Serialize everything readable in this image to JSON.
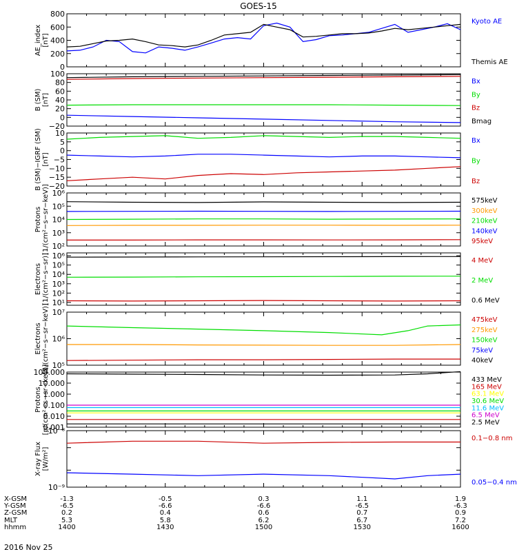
{
  "figure": {
    "title": "GOES-15",
    "footer_date": "2016 Nov 25",
    "x_axis": {
      "row_labels": [
        "X-GSM",
        "Y-GSM",
        "Z-GSM",
        "MLT",
        "hhmm"
      ],
      "columns": [
        [
          "-1.3",
          "-6.5",
          "0.2",
          "5.3",
          "1400"
        ],
        [
          "-0.5",
          "-6.6",
          "0.4",
          "5.8",
          "1430"
        ],
        [
          "0.3",
          "-6.6",
          "0.6",
          "6.2",
          "1500"
        ],
        [
          "1.1",
          "-6.5",
          "0.7",
          "6.7",
          "1530"
        ],
        [
          "1.9",
          "-6.3",
          "0.9",
          "7.2",
          "1600"
        ]
      ]
    }
  },
  "chart_data": [
    {
      "type": "line",
      "ylabel": [
        "AE_index",
        "[nT]"
      ],
      "yscale": "linear",
      "ylim": [
        0,
        800
      ],
      "yticks": [
        0,
        200,
        400,
        600,
        800
      ],
      "ytick_labels": [
        "0",
        "200",
        "400",
        "600",
        "800"
      ],
      "series": [
        {
          "name": "Kyoto AE",
          "color": "#0000ff",
          "t": [
            0,
            4,
            8,
            12,
            16,
            20,
            24,
            28,
            32,
            36,
            40,
            44,
            48,
            52,
            56,
            60,
            64,
            68,
            72,
            76,
            80,
            84,
            88,
            92,
            96,
            100,
            104,
            108,
            112,
            116,
            120
          ],
          "values": [
            240,
            250,
            300,
            400,
            380,
            230,
            210,
            300,
            280,
            250,
            300,
            360,
            420,
            440,
            420,
            620,
            660,
            600,
            380,
            410,
            470,
            480,
            500,
            520,
            580,
            640,
            520,
            560,
            600,
            650,
            560
          ]
        },
        {
          "name": "Themis AE",
          "color": "#000000",
          "t": [
            0,
            4,
            8,
            12,
            16,
            20,
            24,
            28,
            32,
            36,
            40,
            44,
            48,
            52,
            56,
            60,
            64,
            68,
            72,
            76,
            80,
            84,
            88,
            92,
            96,
            100,
            104,
            108,
            112,
            116,
            120
          ],
          "values": [
            300,
            310,
            350,
            390,
            400,
            420,
            380,
            330,
            320,
            300,
            330,
            400,
            480,
            500,
            520,
            640,
            600,
            560,
            450,
            460,
            480,
            500,
            500,
            510,
            540,
            580,
            560,
            580,
            600,
            620,
            640
          ]
        }
      ]
    },
    {
      "type": "line",
      "ylabel": [
        "B (SM)",
        "[nT]"
      ],
      "yscale": "linear",
      "ylim": [
        -20,
        100
      ],
      "yticks": [
        -20,
        0,
        20,
        40,
        60,
        80,
        100
      ],
      "ytick_labels": [
        "−20",
        "0",
        "20",
        "40",
        "60",
        "80",
        "100"
      ],
      "series": [
        {
          "name": "Bx",
          "color": "#0000ff",
          "t": [
            0,
            20,
            40,
            60,
            80,
            100,
            120
          ],
          "values": [
            5,
            2,
            -1,
            -4,
            -7,
            -10,
            -12
          ]
        },
        {
          "name": "By",
          "color": "#00dd00",
          "t": [
            0,
            20,
            40,
            60,
            80,
            100,
            120
          ],
          "values": [
            28,
            29,
            29,
            29,
            29,
            28,
            27
          ]
        },
        {
          "name": "Bz",
          "color": "#cc0000",
          "t": [
            0,
            20,
            40,
            60,
            80,
            100,
            120
          ],
          "values": [
            87,
            89,
            90,
            91,
            92,
            93,
            94
          ]
        },
        {
          "name": "Bmag",
          "color": "#000000",
          "t": [
            0,
            20,
            40,
            60,
            80,
            100,
            120
          ],
          "values": [
            91,
            93,
            94,
            95,
            96,
            97,
            98
          ]
        }
      ]
    },
    {
      "type": "line",
      "ylabel": [
        "B (SM)−IGRF (SM)",
        "[nT]"
      ],
      "yscale": "linear",
      "ylim": [
        -20,
        10
      ],
      "yticks": [
        -20,
        -15,
        -10,
        -5,
        0,
        5,
        10
      ],
      "ytick_labels": [
        "−20",
        "−15",
        "−10",
        "−5",
        "0",
        "5",
        "10"
      ],
      "series": [
        {
          "name": "Bx",
          "color": "#0000ff",
          "t": [
            0,
            10,
            20,
            30,
            40,
            50,
            60,
            70,
            80,
            90,
            100,
            110,
            120
          ],
          "values": [
            -2.5,
            -3,
            -3.5,
            -3,
            -2,
            -2,
            -2.5,
            -3,
            -3.5,
            -3,
            -3,
            -3.5,
            -4
          ]
        },
        {
          "name": "By",
          "color": "#00dd00",
          "t": [
            0,
            10,
            20,
            30,
            40,
            50,
            60,
            70,
            80,
            90,
            100,
            110,
            120
          ],
          "values": [
            6.5,
            7.5,
            8,
            8.5,
            7,
            7.5,
            8.5,
            8,
            7.5,
            8,
            8,
            7.5,
            7
          ]
        },
        {
          "name": "Bz",
          "color": "#cc0000",
          "t": [
            0,
            10,
            20,
            30,
            40,
            50,
            60,
            70,
            80,
            90,
            100,
            110,
            120
          ],
          "values": [
            -17,
            -16,
            -15,
            -16,
            -14,
            -13,
            -13.5,
            -12.5,
            -12,
            -11.5,
            -11,
            -10,
            -9
          ]
        }
      ]
    },
    {
      "type": "line",
      "ylabel": [
        "Protons",
        "[1/(cm²−s−sr−keV)]"
      ],
      "yscale": "log",
      "ylim": [
        100,
        1000000
      ],
      "yticks": [
        100,
        1000,
        10000,
        100000,
        1000000
      ],
      "ytick_labels": [
        "10²",
        "10³",
        "10⁴",
        "10⁵",
        "10⁶"
      ],
      "series": [
        {
          "name": "575keV",
          "color": "#000000",
          "t": [
            0,
            20,
            40,
            60,
            80,
            100,
            120
          ],
          "values": [
            220000,
            200000,
            190000,
            210000,
            200000,
            190000,
            200000
          ]
        },
        {
          "name": "300keV",
          "color": "#ff9900",
          "t": [
            0,
            20,
            40,
            60,
            80,
            100,
            120
          ],
          "values": [
            3500,
            3600,
            3600,
            3700,
            3700,
            3600,
            3700
          ]
        },
        {
          "name": "210keV",
          "color": "#00dd00",
          "t": [
            0,
            20,
            40,
            60,
            80,
            100,
            120
          ],
          "values": [
            10000,
            10500,
            11000,
            11000,
            10500,
            10800,
            11000
          ]
        },
        {
          "name": "140keV",
          "color": "#0000ff",
          "t": [
            0,
            20,
            40,
            60,
            80,
            100,
            120
          ],
          "values": [
            40000,
            41000,
            42000,
            41000,
            40000,
            41000,
            42000
          ]
        },
        {
          "name": "95keV",
          "color": "#cc0000",
          "t": [
            0,
            20,
            40,
            60,
            80,
            100,
            120
          ],
          "values": [
            280,
            280,
            290,
            290,
            285,
            290,
            300
          ]
        }
      ]
    },
    {
      "type": "line",
      "ylabel": [
        "Electrons",
        "[1/(cm²−s−sr)]"
      ],
      "yscale": "log",
      "ylim": [
        5,
        2000000
      ],
      "yticks": [
        10,
        100,
        1000,
        10000,
        100000,
        1000000
      ],
      "ytick_labels": [
        "10¹",
        "10²",
        "10³",
        "10⁴",
        "10⁵",
        "10⁶"
      ],
      "series": [
        {
          "name": "4 MeV",
          "color": "#cc0000",
          "t": [
            0,
            20,
            40,
            60,
            80,
            100,
            120
          ],
          "values": [
            15,
            14,
            15,
            16,
            15,
            14,
            15
          ]
        },
        {
          "name": "2 MeV",
          "color": "#00dd00",
          "t": [
            0,
            20,
            40,
            60,
            80,
            100,
            120
          ],
          "values": [
            5000,
            5200,
            5500,
            5700,
            6000,
            6300,
            6500
          ]
        },
        {
          "name": "0.6 MeV",
          "color": "#000000",
          "t": [
            0,
            20,
            40,
            60,
            80,
            100,
            120
          ],
          "values": [
            700000,
            720000,
            750000,
            760000,
            780000,
            800000,
            820000
          ]
        }
      ]
    },
    {
      "type": "line",
      "ylabel": [
        "Electrons",
        "[1/(cm²−s−sr−keV)]"
      ],
      "yscale": "log",
      "ylim": [
        100000,
        10000000
      ],
      "yticks": [
        100000,
        1000000,
        10000000
      ],
      "ytick_labels": [
        "10⁵",
        "10⁶",
        "10⁷"
      ],
      "series": [
        {
          "name": "475keV",
          "color": "#cc0000",
          "t": [
            0,
            20,
            40,
            60,
            80,
            100,
            120
          ],
          "values": [
            150000,
            155000,
            160000,
            160000,
            165000,
            170000,
            170000
          ]
        },
        {
          "name": "275keV",
          "color": "#ff9900",
          "t": [
            0,
            20,
            40,
            60,
            80,
            100,
            120
          ],
          "values": [
            600000,
            600000,
            580000,
            570000,
            560000,
            560000,
            600000
          ]
        },
        {
          "name": "150keV",
          "color": "#00dd00",
          "t": [
            0,
            20,
            40,
            60,
            80,
            96,
            104,
            110,
            120
          ],
          "values": [
            3000000,
            2600000,
            2300000,
            2000000,
            1700000,
            1400000,
            2000000,
            3000000,
            3300000
          ]
        },
        {
          "name": "75keV",
          "color": "#0000ff",
          "t": [
            0,
            120
          ],
          "values": [
            0,
            0
          ]
        },
        {
          "name": "40keV",
          "color": "#000000",
          "t": [
            0,
            120
          ],
          "values": [
            0,
            0
          ]
        }
      ]
    },
    {
      "type": "line",
      "ylabel": [
        "Protons",
        "[p/(cm²−s−sr−keV)]"
      ],
      "yscale": "log",
      "ylim": [
        0.001,
        100
      ],
      "yticks": [
        0.001,
        0.01,
        0.1,
        1,
        10,
        100
      ],
      "ytick_labels": [
        "0.001",
        "0.010",
        "0.100",
        "1.000",
        "10.000",
        "100.000"
      ],
      "series": [
        {
          "name": "433 MeV",
          "color": "#000000",
          "t": [
            0,
            20,
            40,
            60,
            80,
            100,
            110,
            120
          ],
          "values": [
            70,
            65,
            60,
            55,
            52,
            55,
            70,
            110
          ]
        },
        {
          "name": "165 MeV",
          "color": "#cc0000",
          "t": [
            0,
            120
          ],
          "values": [
            0.005,
            0.005
          ]
        },
        {
          "name": "63.1 MeV",
          "color": "#ffff00",
          "t": [
            0,
            120
          ],
          "values": [
            0.02,
            0.02
          ]
        },
        {
          "name": "30.6 MeV",
          "color": "#00dd00",
          "t": [
            0,
            120
          ],
          "values": [
            0.03,
            0.03
          ]
        },
        {
          "name": "11.6 MeV",
          "color": "#00bbff",
          "t": [
            0,
            120
          ],
          "values": [
            0.06,
            0.06
          ]
        },
        {
          "name": "6.5 MeV",
          "color": "#cc00cc",
          "t": [
            0,
            120
          ],
          "values": [
            0.1,
            0.1
          ]
        },
        {
          "name": "2.5 MeV",
          "color": "#000000",
          "t": [
            0,
            120
          ],
          "values": [
            0.002,
            0.002
          ]
        }
      ]
    },
    {
      "type": "line",
      "ylabel": [
        "X-ray Flux",
        "[W/m²]"
      ],
      "yscale": "log",
      "ylim": [
        1e-09,
        1e-08
      ],
      "yticks": [
        1e-09,
        2e-09,
        5e-09,
        1e-08
      ],
      "ytick_labels": [
        "10⁻⁹",
        "",
        "",
        "10⁻⁸"
      ],
      "series": [
        {
          "name": "0.1−0.8 nm",
          "color": "#cc0000",
          "t": [
            0,
            20,
            40,
            60,
            80,
            100,
            120
          ],
          "values": [
            6e-09,
            6.5e-09,
            6.5e-09,
            6e-09,
            6.2e-09,
            6.3e-09,
            6.3e-09
          ]
        },
        {
          "name": "0.05−0.4 nm",
          "color": "#0000ff",
          "t": [
            0,
            20,
            40,
            60,
            80,
            100,
            110,
            120
          ],
          "values": [
            1.8e-09,
            1.7e-09,
            1.6e-09,
            1.7e-09,
            1.6e-09,
            1.4e-09,
            1.6e-09,
            1.7e-09
          ]
        }
      ]
    }
  ]
}
